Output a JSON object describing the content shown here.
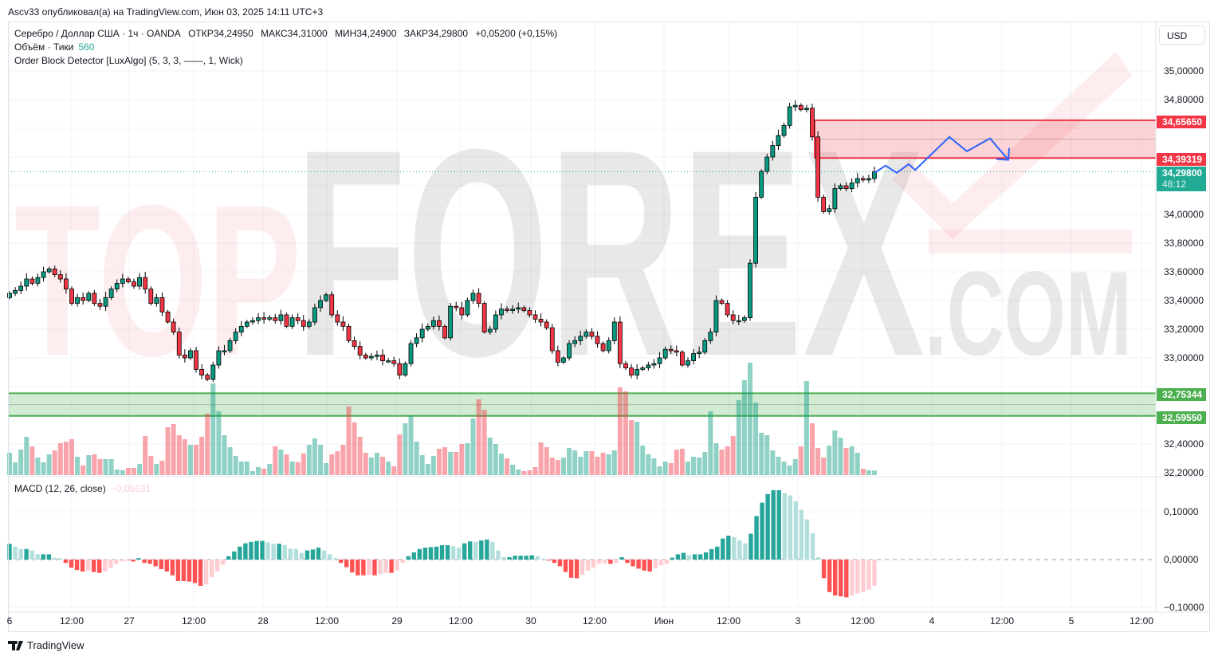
{
  "header": {
    "published": "Ascv33 опубликовал(а) на TradingView.com, Июн 03, 2025 14:11 UTC+3",
    "symbol": "Серебро / Доллар США · 1ч · OANDA",
    "open": "ОТКР34,24950",
    "high": "МАКС34,31000",
    "low": "МИН34,24900",
    "close": "ЗАКР34,29800",
    "change": "+0,05200 (+0,15%)",
    "volume_label": "Объём · Тики",
    "volume_value": "560",
    "indicator": "Order Block Detector [LuxAlgo] (5, 3, 3, ——, 1, Wick)",
    "macd_label": "MACD (12, 26, close)",
    "macd_value": "−0,05631"
  },
  "currency_button": "USD",
  "footer": {
    "brand": "TradingView"
  },
  "watermark": {
    "part1": "TOP",
    "part2": "FOREX",
    "part3": ".COM"
  },
  "colors": {
    "up": "#089981",
    "down": "#f23645",
    "bull_zone": "#4caf50",
    "bear_zone": "#f23645",
    "projection": "#2962ff",
    "macd_up_strong": "#26a69a",
    "macd_up_weak": "#b2dfdb",
    "macd_down_strong": "#ff5252",
    "macd_down_weak": "#ffcdd2"
  },
  "chart_data": {
    "type": "candlestick",
    "timeframe": "1h",
    "price_axis": {
      "range": [
        32.2,
        35.1
      ],
      "ticks": [
        "35,00000",
        "34,80000",
        "34,00000",
        "33,80000",
        "33,60000",
        "33,40000",
        "33,20000",
        "33,00000",
        "32,40000",
        "32,20000"
      ],
      "tick_values": [
        35.0,
        34.8,
        34.0,
        33.8,
        33.6,
        33.4,
        33.2,
        33.0,
        32.4,
        32.2
      ]
    },
    "time_axis": {
      "ticks": [
        "6",
        "12:00",
        "27",
        "12:00",
        "28",
        "12:00",
        "29",
        "12:00",
        "30",
        "12:00",
        "Июн",
        "12:00",
        "3",
        "12:00",
        "4",
        "12:00",
        "5",
        "12:00"
      ]
    },
    "last_price": {
      "value": 34.298,
      "label": "34,29800",
      "countdown": "48:12"
    },
    "order_blocks": [
      {
        "type": "bearish",
        "top": 34.6565,
        "bottom": 34.39319,
        "top_label": "34,65650",
        "bottom_label": "34,39319"
      },
      {
        "type": "bullish",
        "top": 32.75344,
        "bottom": 32.5955,
        "top_label": "32,75344",
        "bottom_label": "32,59550"
      }
    ],
    "projection_path_prices": [
      34.29,
      34.34,
      34.29,
      34.35,
      34.31,
      34.54,
      34.44,
      34.53,
      34.38
    ],
    "closes": [
      33.45,
      33.47,
      33.5,
      33.55,
      33.52,
      33.56,
      33.6,
      33.62,
      33.58,
      33.55,
      33.48,
      33.38,
      33.42,
      33.4,
      33.45,
      33.38,
      33.36,
      33.42,
      33.48,
      33.52,
      33.55,
      33.53,
      33.5,
      33.56,
      33.48,
      33.38,
      33.42,
      33.32,
      33.25,
      33.18,
      33.02,
      33.0,
      33.05,
      32.92,
      32.88,
      32.85,
      32.95,
      33.05,
      33.05,
      33.12,
      33.18,
      33.22,
      33.25,
      33.26,
      33.28,
      33.27,
      33.28,
      33.26,
      33.3,
      33.22,
      33.28,
      33.26,
      33.22,
      33.25,
      33.35,
      33.4,
      33.44,
      33.3,
      33.25,
      33.22,
      33.12,
      33.08,
      33.02,
      33.0,
      33.01,
      33.02,
      32.98,
      32.98,
      32.96,
      32.88,
      32.96,
      33.1,
      33.14,
      33.2,
      33.22,
      33.26,
      33.22,
      33.14,
      33.36,
      33.35,
      33.3,
      33.4,
      33.45,
      33.38,
      33.18,
      33.2,
      33.3,
      33.34,
      33.33,
      33.34,
      33.35,
      33.33,
      33.3,
      33.27,
      33.25,
      33.21,
      33.05,
      32.97,
      33.0,
      33.1,
      33.12,
      33.15,
      33.18,
      33.15,
      33.1,
      33.05,
      33.12,
      33.25,
      32.96,
      32.93,
      32.88,
      32.92,
      32.93,
      32.95,
      32.96,
      33.0,
      33.06,
      33.05,
      33.04,
      32.95,
      32.98,
      33.03,
      33.04,
      33.12,
      33.18,
      33.4,
      33.38,
      33.3,
      33.26,
      33.26,
      33.28,
      33.66,
      34.12,
      34.3,
      34.4,
      34.48,
      34.55,
      34.62,
      34.75,
      34.76,
      34.73,
      34.74,
      34.54,
      34.12,
      34.02,
      34.04,
      34.18,
      34.2,
      34.18,
      34.22,
      34.25,
      34.24,
      34.25,
      34.298
    ],
    "volume_ticks": [
      2800,
      1600,
      3200,
      4800,
      3600,
      2200,
      1600,
      2600,
      3100,
      4000,
      4200,
      4500,
      2300,
      1200,
      2500,
      2600,
      2000,
      2000,
      2000,
      700,
      600,
      900,
      900,
      1400,
      4900,
      2400,
      1400,
      1800,
      6000,
      6400,
      5000,
      4500,
      3800,
      3800,
      4800,
      7700,
      11500,
      8000,
      5000,
      3500,
      2400,
      1700,
      1700,
      500,
      1000,
      800,
      1400,
      3600,
      3200,
      2600,
      1700,
      1600,
      2700,
      3800,
      4600,
      3800,
      1500,
      2600,
      3000,
      3800,
      8600,
      6600,
      4800,
      2800,
      2200,
      2800,
      2300,
      1700,
      1100,
      5100,
      6500,
      7500,
      4200,
      2500,
      1400,
      2400,
      3300,
      3500,
      2900,
      2900,
      3900,
      4000,
      7100,
      9500,
      8200,
      4700,
      3900,
      2700,
      2100,
      1300,
      700,
      500,
      600,
      1000,
      4100,
      3500,
      2200,
      1900,
      2200,
      3400,
      3100,
      2300,
      3000,
      3000,
      2300,
      2800,
      2600,
      3100,
      11000,
      10500,
      6900,
      6700,
      3700,
      2600,
      2100,
      1100,
      1700,
      1500,
      3200,
      3300,
      1700,
      2300,
      2200,
      2900,
      8000,
      4000,
      3200,
      3600,
      4900,
      9400,
      11900,
      14100,
      9100,
      5300,
      5000,
      3100,
      2300,
      1700,
      1200,
      2000,
      3600,
      11800,
      6500,
      3400,
      2200,
      3700,
      5600,
      4700,
      3400,
      3600,
      2800,
      800,
      600,
      560
    ],
    "macd_histogram": [
      0.033,
      0.027,
      0.022,
      0.022,
      0.019,
      0.011,
      0.011,
      0.011,
      0.004,
      0.003,
      -0.007,
      -0.017,
      -0.022,
      -0.025,
      -0.023,
      -0.026,
      -0.028,
      -0.025,
      -0.017,
      -0.009,
      -0.004,
      -0.003,
      -0.004,
      0.003,
      -0.007,
      -0.009,
      -0.014,
      -0.02,
      -0.025,
      -0.033,
      -0.045,
      -0.045,
      -0.046,
      -0.049,
      -0.055,
      -0.052,
      -0.037,
      -0.025,
      -0.011,
      0.007,
      0.017,
      0.027,
      0.034,
      0.037,
      0.039,
      0.039,
      0.036,
      0.033,
      0.033,
      0.03,
      0.023,
      0.022,
      0.014,
      0.019,
      0.021,
      0.025,
      0.019,
      0.011,
      0.003,
      -0.007,
      -0.016,
      -0.027,
      -0.033,
      -0.033,
      -0.032,
      -0.033,
      -0.03,
      -0.028,
      -0.028,
      -0.023,
      -0.007,
      0.007,
      0.015,
      0.022,
      0.025,
      0.026,
      0.027,
      0.03,
      0.03,
      0.028,
      0.025,
      0.034,
      0.038,
      0.037,
      0.04,
      0.042,
      0.037,
      0.019,
      0.005,
      0.005,
      0.008,
      0.008,
      0.008,
      0.009,
      0.007,
      0.002,
      -0.002,
      -0.007,
      -0.014,
      -0.026,
      -0.038,
      -0.039,
      -0.032,
      -0.023,
      -0.017,
      -0.009,
      -0.008,
      -0.009,
      -0.007,
      0.005,
      -0.007,
      -0.014,
      -0.019,
      -0.023,
      -0.025,
      -0.018,
      -0.012,
      -0.009,
      0.004,
      0.011,
      0.014,
      0.009,
      0.011,
      0.011,
      0.015,
      0.022,
      0.027,
      0.044,
      0.05,
      0.047,
      0.04,
      0.034,
      0.054,
      0.091,
      0.119,
      0.137,
      0.145,
      0.145,
      0.139,
      0.134,
      0.122,
      0.104,
      0.084,
      0.055,
      0.005,
      -0.039,
      -0.068,
      -0.075,
      -0.077,
      -0.079,
      -0.075,
      -0.071,
      -0.068,
      -0.063,
      -0.055
    ],
    "macd_axis": {
      "ticks": [
        "0,10000",
        "0,00000",
        "−0,10000"
      ],
      "tick_values": [
        0.1,
        0.0,
        -0.1
      ]
    },
    "grid": true
  }
}
